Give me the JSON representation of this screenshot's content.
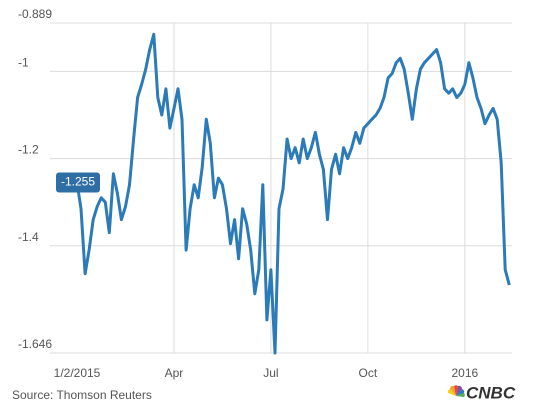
{
  "chart_data": {
    "type": "line",
    "categories": [
      "1/2/2015",
      null,
      null,
      null,
      null,
      null,
      null,
      null,
      null,
      null,
      null,
      null,
      null,
      null,
      null,
      null,
      null,
      null,
      null,
      null,
      null,
      null,
      null,
      null,
      "Apr",
      null,
      null,
      null,
      null,
      null,
      null,
      null,
      null,
      null,
      null,
      null,
      null,
      null,
      null,
      null,
      null,
      null,
      null,
      null,
      null,
      null,
      null,
      null,
      "Jul",
      null,
      null,
      null,
      null,
      null,
      null,
      null,
      null,
      null,
      null,
      null,
      null,
      null,
      null,
      null,
      null,
      null,
      null,
      null,
      null,
      null,
      null,
      null,
      "Oct",
      null,
      null,
      null,
      null,
      null,
      null,
      null,
      null,
      null,
      null,
      null,
      null,
      null,
      null,
      null,
      null,
      null,
      null,
      null,
      null,
      null,
      null,
      null,
      "2016",
      null,
      null,
      null,
      null,
      null,
      null,
      null,
      null,
      null,
      null,
      null
    ],
    "series": [
      {
        "color": "#2b7bb9",
        "values": [
          -1.255,
          -1.315,
          -1.464,
          -1.41,
          -1.34,
          -1.31,
          -1.29,
          -1.3,
          -1.37,
          -1.235,
          -1.28,
          -1.34,
          -1.31,
          -1.26,
          -1.155,
          -1.06,
          -1.03,
          -0.995,
          -0.95,
          -0.915,
          -1.06,
          -1.1,
          -1.04,
          -1.13,
          -1.085,
          -1.04,
          -1.11,
          -1.41,
          -1.315,
          -1.26,
          -1.29,
          -1.22,
          -1.11,
          -1.165,
          -1.29,
          -1.245,
          -1.26,
          -1.315,
          -1.395,
          -1.34,
          -1.43,
          -1.315,
          -1.35,
          -1.41,
          -1.51,
          -1.455,
          -1.26,
          -1.57,
          -1.455,
          -1.646,
          -1.315,
          -1.27,
          -1.155,
          -1.2,
          -1.175,
          -1.21,
          -1.155,
          -1.2,
          -1.175,
          -1.14,
          -1.19,
          -1.225,
          -1.34,
          -1.225,
          -1.19,
          -1.235,
          -1.175,
          -1.2,
          -1.175,
          -1.14,
          -1.165,
          -1.13,
          -1.12,
          -1.11,
          -1.1,
          -1.085,
          -1.06,
          -1.015,
          -1.005,
          -0.98,
          -0.97,
          -0.995,
          -1.05,
          -1.11,
          -1.04,
          -0.995,
          -0.98,
          -0.97,
          -0.96,
          -0.95,
          -0.98,
          -1.04,
          -1.05,
          -1.04,
          -1.06,
          -1.05,
          -1.03,
          -0.98,
          -1.015,
          -1.06,
          -1.085,
          -1.12,
          -1.1,
          -1.085,
          -1.11,
          -1.21,
          -1.455,
          -1.49
        ]
      }
    ],
    "annotation": "-1.255",
    "ylim": [
      -1.646,
      -0.889
    ],
    "yticks": [
      -0.889,
      -1,
      -1.2,
      -1.4,
      -1.646
    ],
    "grid": true,
    "source": "Source: Thomson Reuters",
    "logo": "CNBC"
  }
}
